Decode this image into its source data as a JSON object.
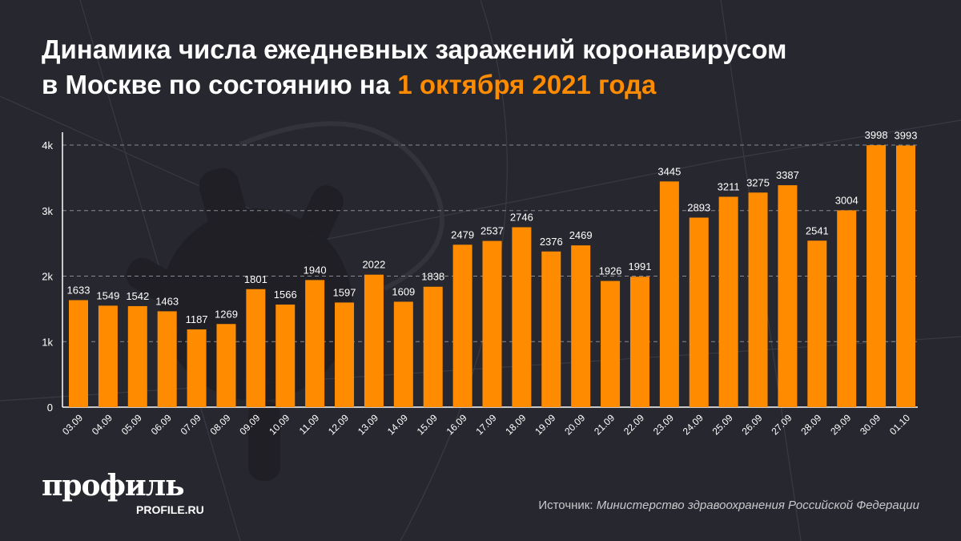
{
  "title": {
    "line1": "Динамика числа ежедневных заражений коронавирусом",
    "line2_prefix": "в Москве по состоянию на ",
    "line2_highlight": "1 октября 2021 года"
  },
  "colors": {
    "background": "#27272f",
    "bar": "#ff8c00",
    "highlight": "#ff8c00",
    "text": "#ffffff"
  },
  "chart_data": {
    "type": "bar",
    "categories": [
      "03.09",
      "04.09",
      "05.09",
      "06.09",
      "07.09",
      "08.09",
      "09.09",
      "10.09",
      "11.09",
      "12.09",
      "13.09",
      "14.09",
      "15.09",
      "16.09",
      "17.09",
      "18.09",
      "19.09",
      "20.09",
      "21.09",
      "22.09",
      "23.09",
      "24.09",
      "25.09",
      "26.09",
      "27.09",
      "28.09",
      "29.09",
      "30.09",
      "01.10"
    ],
    "values": [
      1633,
      1549,
      1542,
      1463,
      1187,
      1269,
      1801,
      1566,
      1940,
      1597,
      2022,
      1609,
      1838,
      2479,
      2537,
      2746,
      2376,
      2469,
      1926,
      1991,
      3445,
      2893,
      3211,
      3275,
      3387,
      2541,
      3004,
      3998,
      3993
    ],
    "ylim": [
      0,
      4000
    ],
    "yticks": [
      0,
      1000,
      2000,
      3000,
      4000
    ],
    "ytick_labels": [
      "0",
      "1k",
      "2k",
      "3k",
      "4k"
    ],
    "grid": "horizontal dashed",
    "data_labels": true
  },
  "logo": {
    "main": "профиль",
    "sub": "PROFILE.RU"
  },
  "source": {
    "label": "Источник: ",
    "text": "Министерство здравоохранения Российской Федерации"
  }
}
